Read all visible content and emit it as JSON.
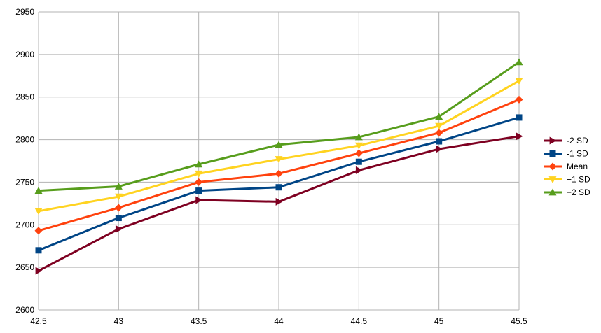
{
  "chart_data": {
    "type": "line",
    "title": "",
    "xlabel": "",
    "ylabel": "",
    "x": [
      42.5,
      43,
      43.5,
      44,
      44.5,
      45,
      45.5
    ],
    "xlim": [
      42.5,
      45.5
    ],
    "ylim": [
      2600,
      2950
    ],
    "x_ticks": [
      "42.5",
      "43",
      "43.5",
      "44",
      "44.5",
      "45",
      "45.5"
    ],
    "y_ticks": [
      "2600",
      "2650",
      "2700",
      "2750",
      "2800",
      "2850",
      "2900",
      "2950"
    ],
    "grid": true,
    "legend_position": "right",
    "series": [
      {
        "name": "-2 SD",
        "color": "#7e0021",
        "marker": "triangle-right",
        "values": [
          2646,
          2695,
          2729,
          2727,
          2764,
          2789,
          2804
        ]
      },
      {
        "name": "-1 SD",
        "color": "#004586",
        "marker": "square",
        "values": [
          2670,
          2708,
          2740,
          2744,
          2774,
          2798,
          2826
        ]
      },
      {
        "name": "Mean",
        "color": "#ff420e",
        "marker": "diamond",
        "values": [
          2693,
          2720,
          2750,
          2760,
          2784,
          2808,
          2847
        ]
      },
      {
        "name": "+1 SD",
        "color": "#ffd320",
        "marker": "triangle-down",
        "values": [
          2716,
          2733,
          2760,
          2777,
          2793,
          2816,
          2869
        ]
      },
      {
        "name": "+2 SD",
        "color": "#579d1c",
        "marker": "triangle-up",
        "values": [
          2740,
          2745,
          2771,
          2794,
          2803,
          2827,
          2891
        ]
      }
    ]
  }
}
